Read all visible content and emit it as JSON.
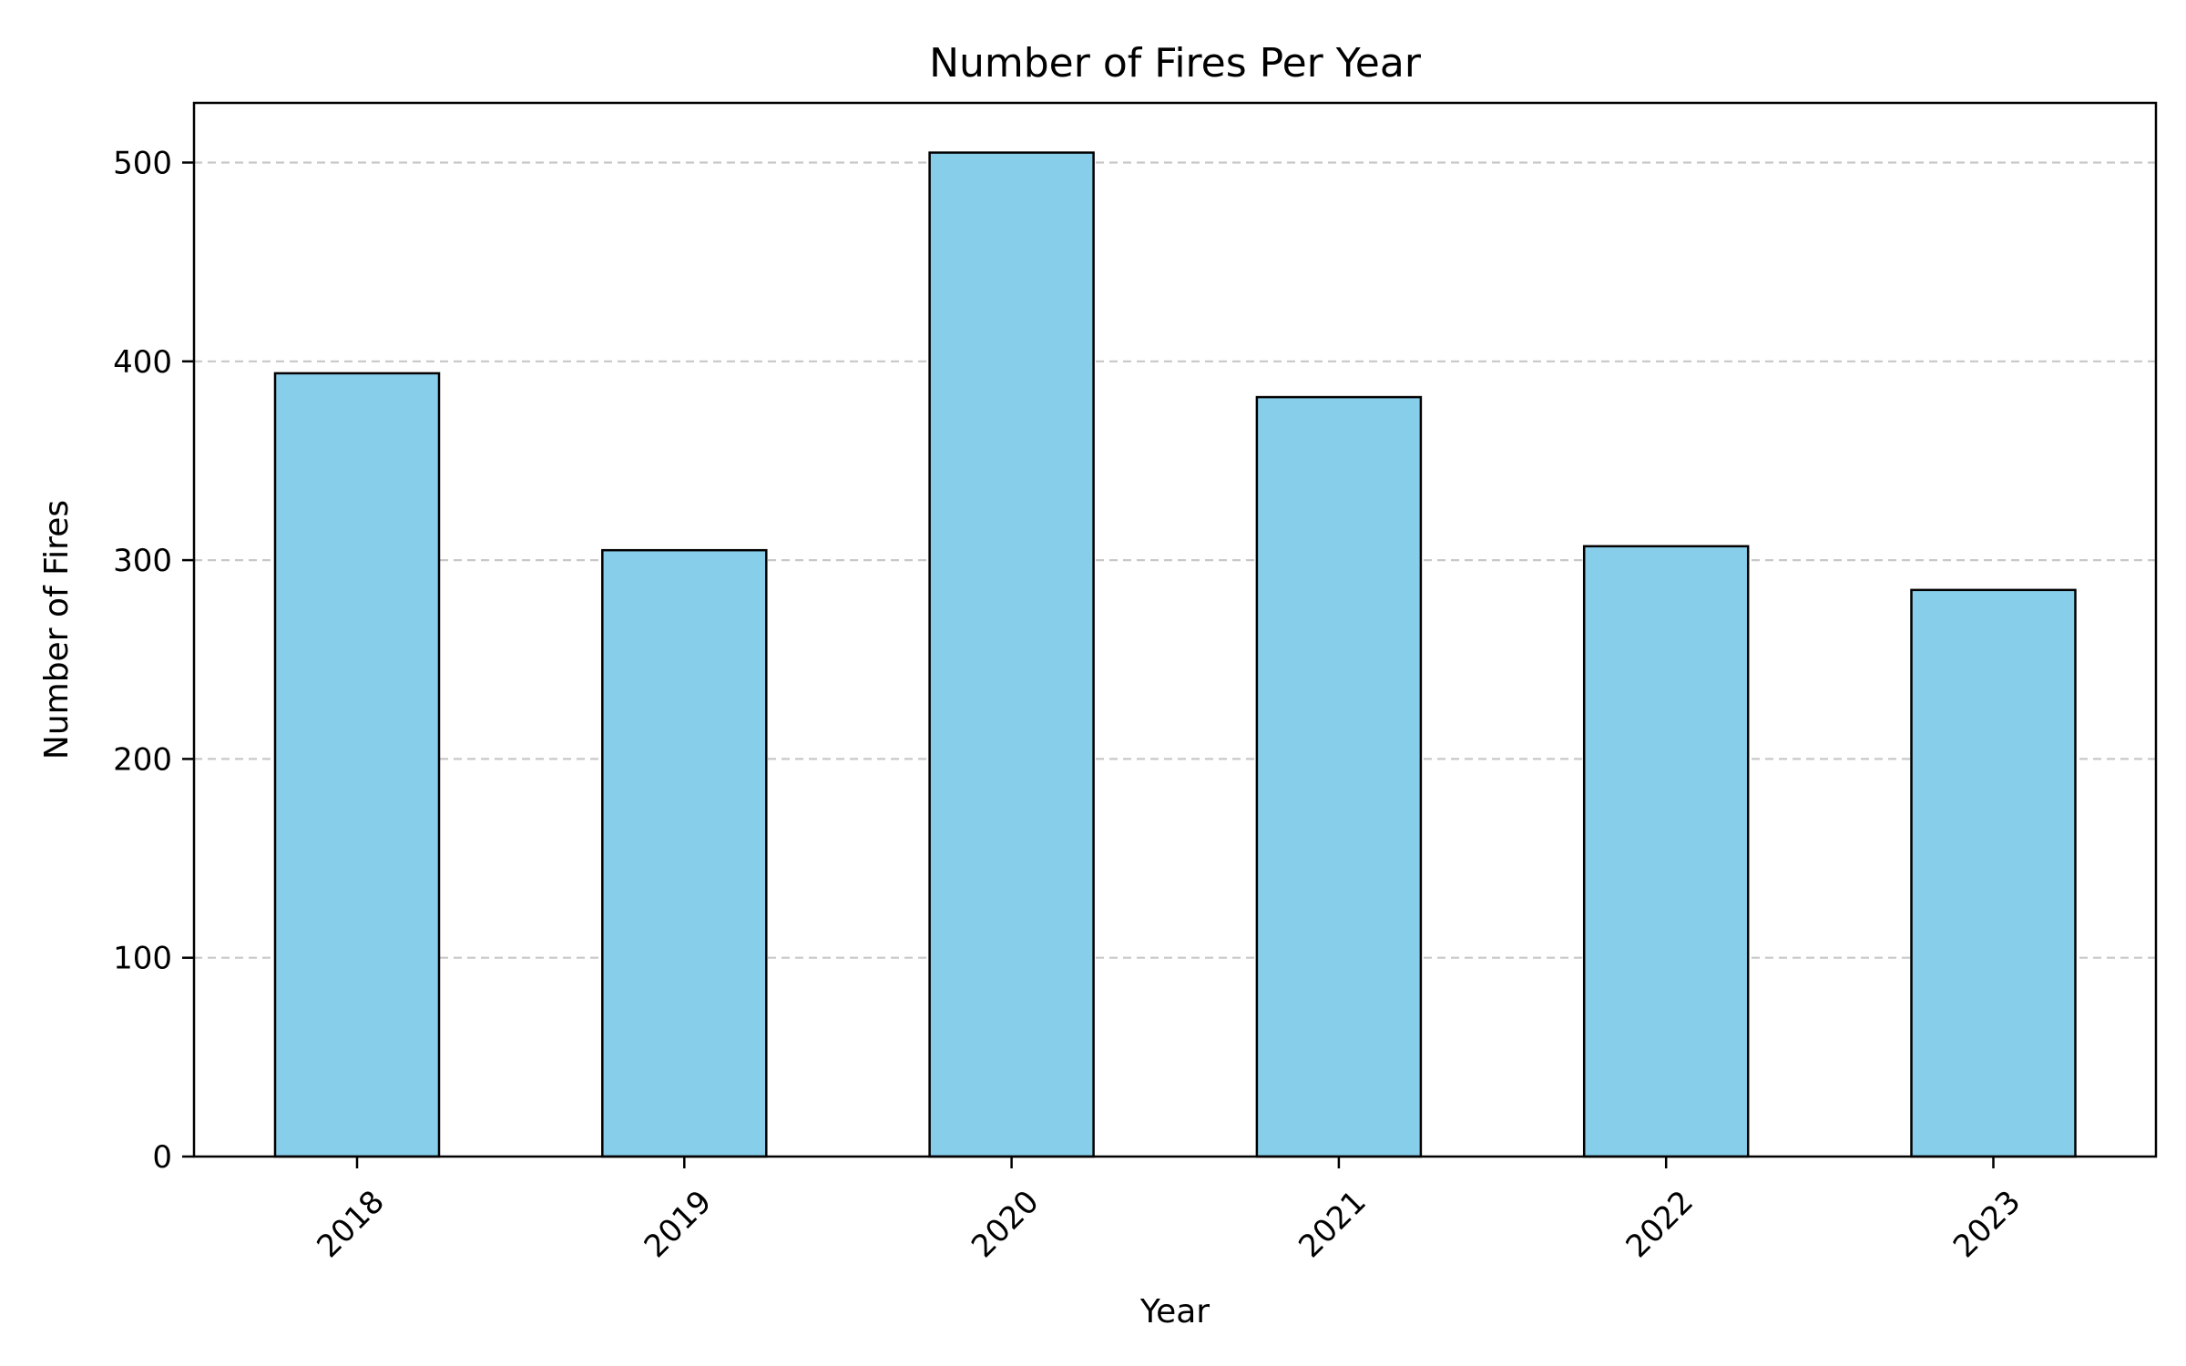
{
  "chart_data": {
    "type": "bar",
    "title": "Number of Fires Per Year",
    "xlabel": "Year",
    "ylabel": "Number of Fires",
    "categories": [
      "2018",
      "2019",
      "2020",
      "2021",
      "2022",
      "2023"
    ],
    "values": [
      394,
      305,
      505,
      382,
      307,
      285
    ],
    "ylim": [
      0,
      530
    ],
    "yticks": [
      0,
      100,
      200,
      300,
      400,
      500
    ],
    "ytick_labels": [
      "0",
      "100",
      "200",
      "300",
      "400",
      "500"
    ],
    "grid": {
      "axis": "y",
      "style": "dashed",
      "color": "#c8c8c8"
    },
    "bar_color": "#87ceeb",
    "edge_color": "#000000",
    "xtick_rotation": 45
  }
}
